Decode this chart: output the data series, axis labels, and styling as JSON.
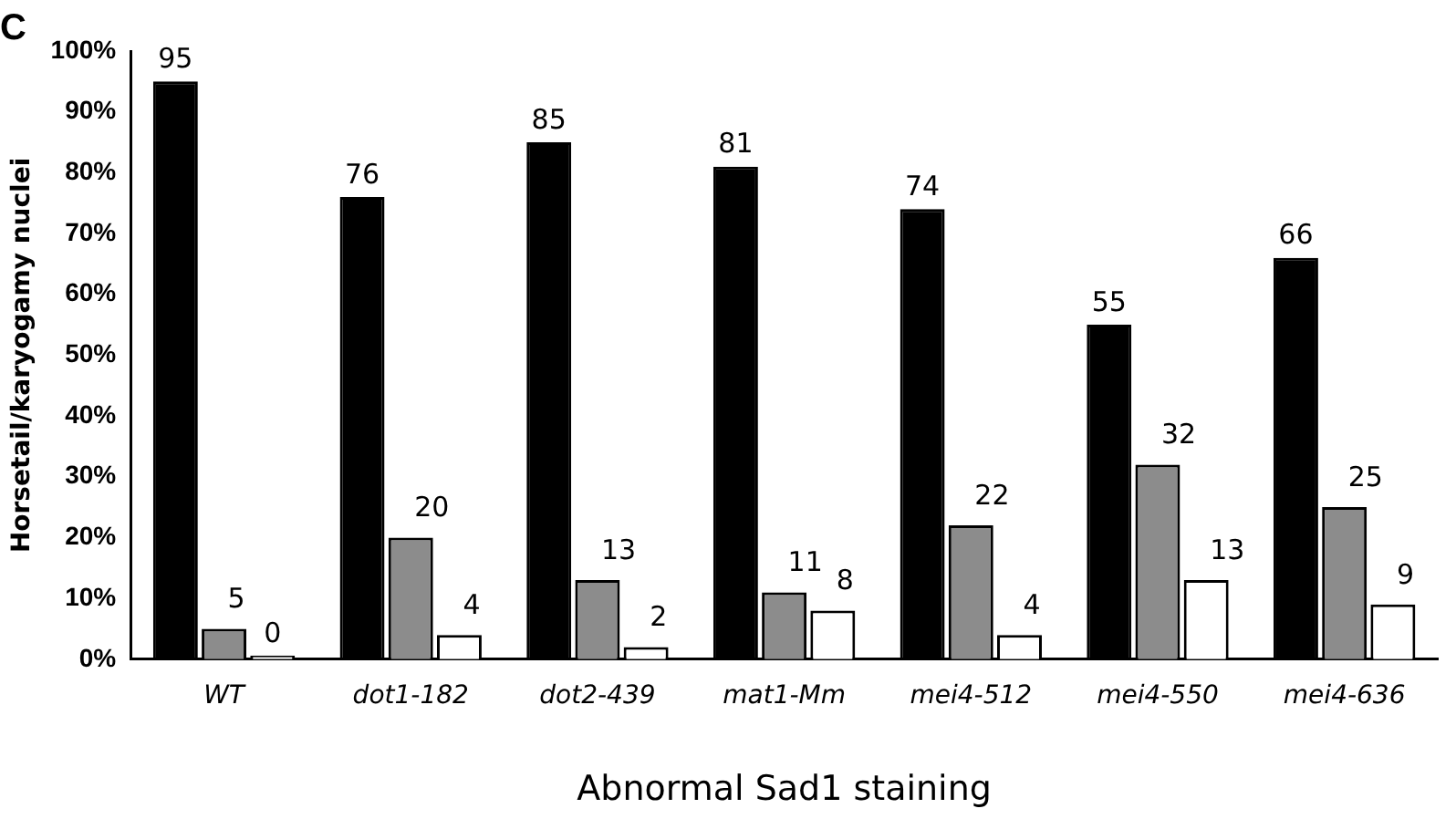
{
  "chart_data": {
    "type": "bar",
    "title": "C",
    "xlabel": "Abnormal Sad1 staining",
    "ylabel": "Horsetail/karyogamy nuclei",
    "categories": [
      "WT",
      "dot1-182",
      "dot2-439",
      "mat1-Mm",
      "mei4-512",
      "mei4-550",
      "mei4-636"
    ],
    "series": [
      {
        "color": "#000000",
        "values": [
          95,
          76,
          85,
          81,
          74,
          55,
          66
        ]
      },
      {
        "color": "#8c8c8c",
        "values": [
          5,
          20,
          13,
          11,
          22,
          32,
          25
        ]
      },
      {
        "color": "#ffffff",
        "values": [
          0,
          4,
          2,
          8,
          4,
          13,
          9
        ]
      }
    ],
    "ylim": [
      0,
      100
    ],
    "yticks": [
      {
        "value": 0,
        "label": "0%"
      },
      {
        "value": 10,
        "label": "10%"
      },
      {
        "value": 20,
        "label": "20%"
      },
      {
        "value": 30,
        "label": "30%"
      },
      {
        "value": 40,
        "label": "40%"
      },
      {
        "value": 50,
        "label": "50%"
      },
      {
        "value": 60,
        "label": "60%"
      },
      {
        "value": 70,
        "label": "70%"
      },
      {
        "value": 80,
        "label": "80%"
      },
      {
        "value": 90,
        "label": "90%"
      },
      {
        "value": 100,
        "label": "100%"
      }
    ],
    "grid": false,
    "legend": false,
    "data_labels": true
  }
}
